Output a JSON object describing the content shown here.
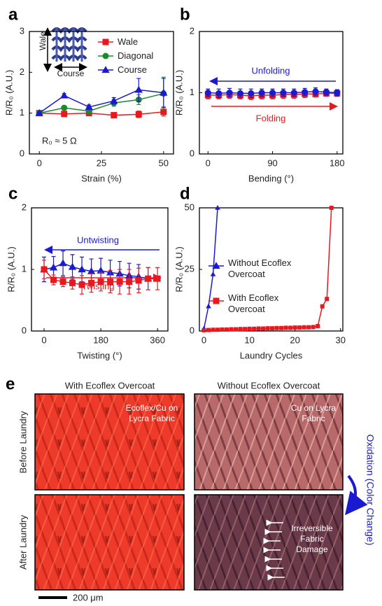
{
  "chart_data": [
    {
      "type": "line",
      "panel_label": "a",
      "xlabel": "Strain (%)",
      "ylabel": "R/R₀ (A.U.)",
      "xlim": [
        -4,
        54
      ],
      "ylim": [
        0,
        3
      ],
      "xticks": [
        0,
        25,
        50
      ],
      "yticks": [
        0,
        1,
        2,
        3
      ],
      "legend": "upper right",
      "series": [
        {
          "name": "Wale",
          "color": "#e8191e",
          "marker": "square",
          "x": [
            0,
            10,
            20,
            30,
            40,
            50
          ],
          "values": [
            1.0,
            0.98,
            1.0,
            0.95,
            0.97,
            1.03
          ],
          "errors": [
            0.02,
            0.03,
            0.03,
            0.03,
            0.08,
            0.1
          ]
        },
        {
          "name": "Diagonal",
          "color": "#1a8a2a",
          "marker": "circle",
          "x": [
            0,
            10,
            20,
            30,
            40,
            50
          ],
          "values": [
            1.0,
            1.13,
            1.05,
            1.25,
            1.33,
            1.48
          ],
          "errors": [
            0.02,
            0.04,
            0.04,
            0.08,
            0.12,
            0.4
          ]
        },
        {
          "name": "Course",
          "color": "#1a1ad0",
          "marker": "triangle",
          "x": [
            0,
            10,
            20,
            30,
            40,
            50
          ],
          "values": [
            1.0,
            1.43,
            1.15,
            1.3,
            1.57,
            1.5
          ],
          "errors": [
            0.02,
            0.05,
            0.05,
            0.08,
            0.28,
            0.35
          ]
        }
      ],
      "annotations": [
        {
          "text": "R₀ ≈ 5 Ω"
        },
        {
          "text": "Wale"
        },
        {
          "text": "Course"
        }
      ]
    },
    {
      "type": "line",
      "panel_label": "b",
      "xlabel": "Bending (°)",
      "ylabel": "R/R₀ (A.U.)",
      "xlim": [
        -12,
        188
      ],
      "ylim": [
        0,
        2
      ],
      "xticks": [
        0,
        90,
        180
      ],
      "yticks": [
        0,
        1,
        2
      ],
      "series": [
        {
          "color": "#e8191e",
          "marker": "square",
          "x": [
            0,
            15,
            30,
            45,
            60,
            75,
            90,
            105,
            120,
            135,
            150,
            165,
            180
          ],
          "values": [
            0.96,
            0.96,
            0.97,
            0.96,
            0.95,
            0.96,
            0.96,
            0.97,
            0.97,
            0.98,
            0.98,
            0.99,
            0.99
          ],
          "errors": [
            0.06,
            0.06,
            0.06,
            0.06,
            0.06,
            0.06,
            0.06,
            0.06,
            0.06,
            0.06,
            0.05,
            0.05,
            0.05
          ]
        },
        {
          "color": "#1a1ad0",
          "marker": "circle",
          "x": [
            0,
            15,
            30,
            45,
            60,
            75,
            90,
            105,
            120,
            135,
            150,
            165,
            180
          ],
          "values": [
            1.0,
            0.99,
            1.0,
            0.99,
            0.99,
            1.0,
            1.0,
            1.0,
            1.0,
            1.01,
            1.02,
            1.01,
            1.0
          ],
          "errors": [
            0.06,
            0.07,
            0.07,
            0.07,
            0.07,
            0.06,
            0.06,
            0.06,
            0.06,
            0.06,
            0.06,
            0.05,
            0.05
          ]
        }
      ],
      "annotations": [
        {
          "text": "Unfolding",
          "color": "#1a1ad0",
          "arrow": "left"
        },
        {
          "text": "Folding",
          "color": "#e8191e",
          "arrow": "right"
        }
      ]
    },
    {
      "type": "line",
      "panel_label": "c",
      "xlabel": "Twisting (°)",
      "ylabel": "R/R₀ (A.U.)",
      "xlim": [
        -40,
        393
      ],
      "ylim": [
        0,
        2
      ],
      "xticks": [
        0,
        180,
        360
      ],
      "yticks": [
        0,
        1,
        2
      ],
      "series": [
        {
          "color": "#1a1ad0",
          "marker": "triangle",
          "x": [
            0,
            30,
            60,
            90,
            120,
            150,
            180,
            210,
            240,
            270,
            300,
            330
          ],
          "values": [
            1.0,
            1.03,
            1.1,
            1.04,
            1.0,
            0.97,
            0.98,
            0.95,
            0.93,
            0.9,
            0.88,
            0.85
          ],
          "errors": [
            0.2,
            0.18,
            0.2,
            0.2,
            0.2,
            0.2,
            0.2,
            0.2,
            0.2,
            0.2,
            0.2,
            0.18
          ]
        },
        {
          "color": "#e8191e",
          "marker": "square",
          "x": [
            0,
            30,
            60,
            90,
            120,
            150,
            180,
            210,
            240,
            270,
            300,
            330,
            360
          ],
          "values": [
            1.0,
            0.83,
            0.8,
            0.78,
            0.75,
            0.78,
            0.8,
            0.8,
            0.8,
            0.8,
            0.82,
            0.85,
            0.85
          ],
          "errors": [
            0.15,
            0.08,
            0.08,
            0.1,
            0.15,
            0.15,
            0.15,
            0.18,
            0.2,
            0.2,
            0.2,
            0.18,
            0.18
          ]
        }
      ],
      "annotations": [
        {
          "text": "Untwisting",
          "color": "#1a1ad0",
          "arrow": "left"
        },
        {
          "text": "Twisting",
          "color": "#e8191e",
          "arrow": "right"
        }
      ]
    },
    {
      "type": "line",
      "panel_label": "d",
      "xlabel": "Laundry Cycles",
      "ylabel": "R/R₀ (A.U.)",
      "xlim": [
        -1,
        30.5
      ],
      "ylim": [
        0,
        50
      ],
      "xticks": [
        0,
        10,
        20,
        30
      ],
      "yticks": [
        0,
        25,
        50
      ],
      "legend": "center",
      "series": [
        {
          "name": "Without Ecoflex Overcoat",
          "color": "#1a1ad0",
          "marker": "triangle",
          "x": [
            0,
            1,
            2,
            3
          ],
          "values": [
            1,
            10,
            23,
            50
          ]
        },
        {
          "name": "With Ecoflex Overcoat",
          "color": "#e8191e",
          "marker": "square",
          "x": [
            0,
            1,
            2,
            3,
            4,
            5,
            6,
            7,
            8,
            9,
            10,
            11,
            12,
            13,
            14,
            15,
            16,
            17,
            18,
            19,
            20,
            21,
            22,
            23,
            24,
            25,
            26,
            27,
            28
          ],
          "values": [
            0.3,
            0.4,
            0.5,
            0.5,
            0.6,
            0.6,
            0.7,
            0.7,
            0.8,
            0.8,
            0.9,
            0.9,
            1.0,
            1.0,
            1.1,
            1.1,
            1.2,
            1.2,
            1.3,
            1.3,
            1.4,
            1.4,
            1.5,
            1.5,
            1.6,
            2.0,
            10,
            13,
            50
          ]
        }
      ]
    }
  ],
  "panel_e": {
    "panel_label": "e",
    "columns": [
      "With Ecoflex Overcoat",
      "Without Ecoflex Overcoat"
    ],
    "rows": [
      "Before Laundry",
      "After Laundry"
    ],
    "overlays": [
      "Ecoflex/Cu on Lycra Fabric",
      "Cu on Lycra Fabric",
      "Irreversible Fabric Damage"
    ],
    "side_note": "Oxidation (Color Change)",
    "scale_bar": "200 μm"
  }
}
